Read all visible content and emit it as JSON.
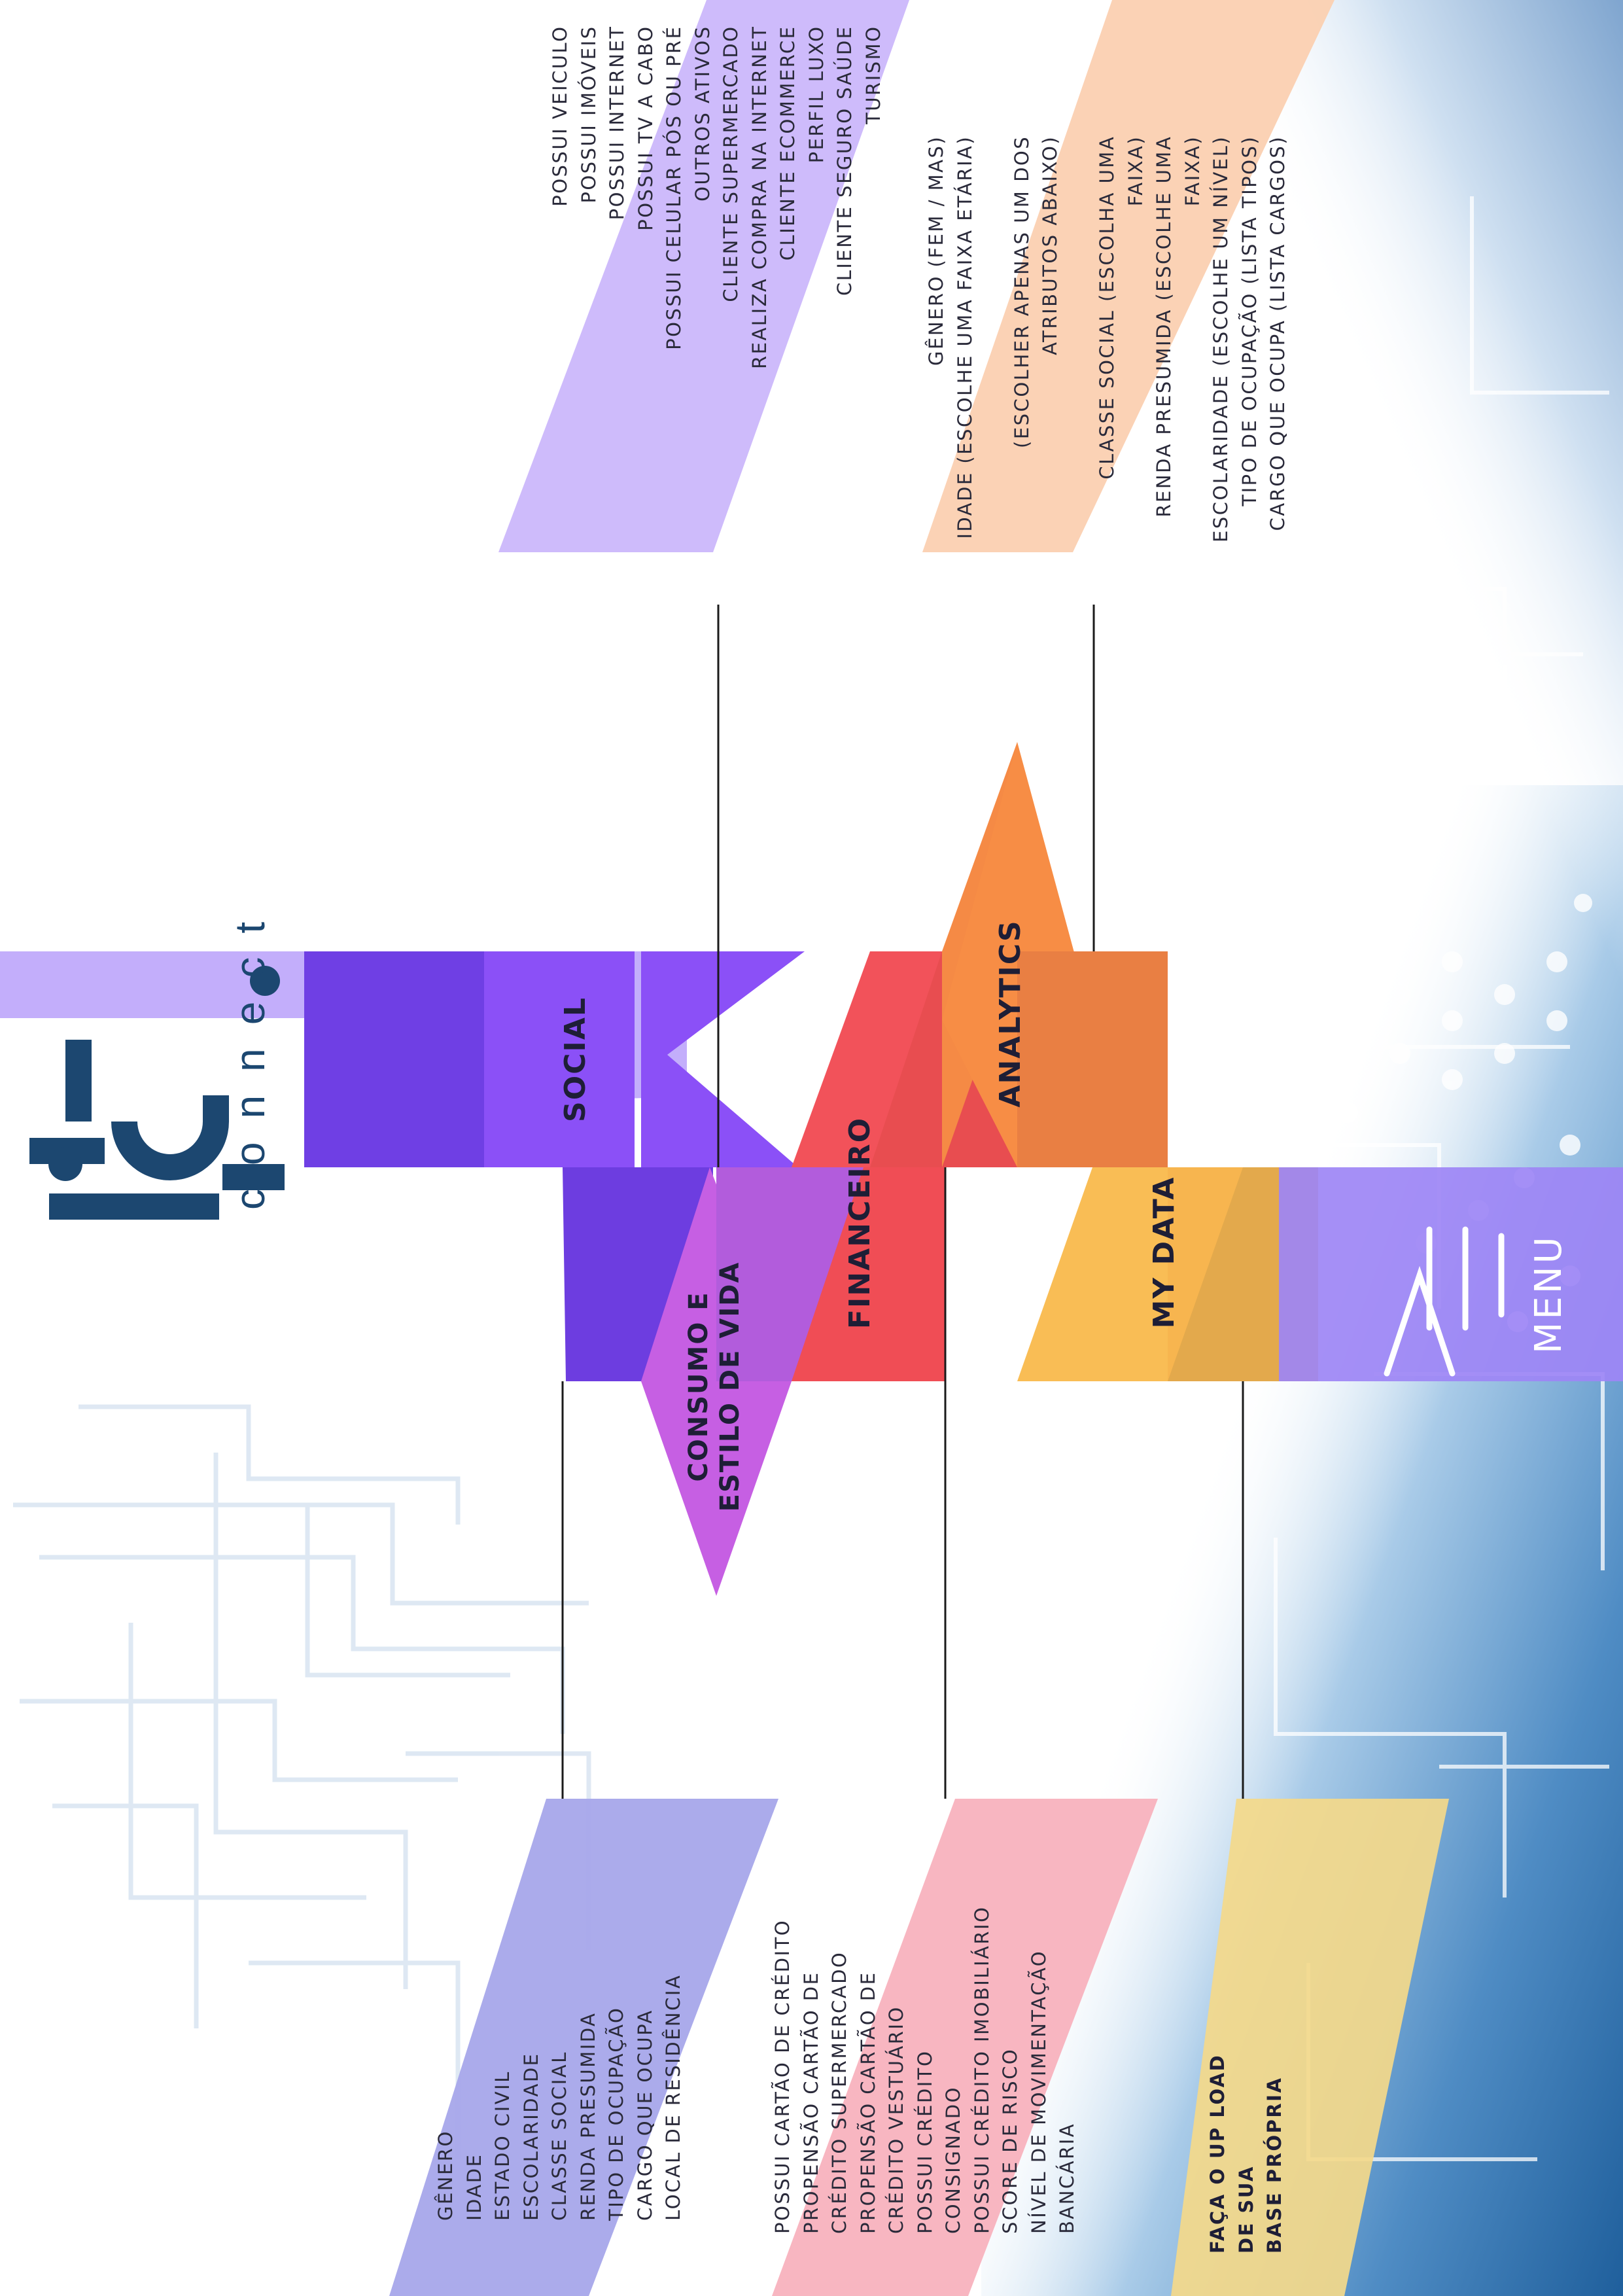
{
  "brand": {
    "logo_text": "tbi",
    "tagline": "connect"
  },
  "segments": {
    "social": "SOCIAL",
    "consumo": [
      "CONSUMO E",
      "ESTILO DE VIDA"
    ],
    "financeiro": "FINANCEIRO",
    "analytics": "ANALYTICS",
    "my_data": "MY DATA"
  },
  "menu": {
    "label": "MENU"
  },
  "panels": {
    "social": [
      "GÊNERO",
      "IDADE",
      "ESTADO CIVIL",
      "ESCOLARIDADE",
      "CLASSE SOCIAL",
      "RENDA PRESUMIDA",
      "TIPO DE OCUPAÇÃO",
      "CARGO QUE OCUPA",
      "LOCAL DE RESIDÊNCIA"
    ],
    "financeiro": [
      "POSSUI CARTÃO DE CRÉDITO",
      "PROPENSÃO CARTÃO DE",
      "CRÉDITO SUPERMERCADO",
      "PROPENSÃO CARTÃO DE",
      "CRÉDITO VESTUÁRIO",
      "POSSUI CRÉDITO",
      "CONSIGNADO",
      "POSSUI CRÉDITO IMOBILIÁRIO",
      "SCORE DE RISCO",
      "NÍVEL DE MOVIMENTAÇÃO",
      "BANCÁRIA"
    ],
    "my_data": [
      "FAÇA O UP LOAD",
      "DE SUA",
      "BASE PRÓPRIA"
    ],
    "consumo": [
      "POSSUI VEICULO",
      "POSSUI IMÓVEIS",
      "POSSUI INTERNET",
      "POSSUI TV A CABO",
      "POSSUI CELULAR PÓS OU PRÉ",
      "OUTROS ATIVOS",
      "CLIENTE SUPERMERCADO",
      "REALIZA COMPRA NA INTERNET",
      "CLIENTE ECOMMERCE",
      "PERFIL LUXO",
      "CLIENTE SEGURO SAÚDE",
      "TURISMO"
    ],
    "analytics": [
      "GÊNERO (FEM / MAS)",
      "IDADE (ESCOLHE UMA FAIXA ETÁRIA)",
      "",
      "(ESCOLHER APENAS UM DOS",
      "ATRIBUTOS ABAIXO)",
      "",
      "CLASSE SOCIAL (ESCOLHA UMA",
      "FAIXA)",
      "RENDA PRESUMIDA (ESCOLHE UMA",
      "FAIXA)",
      "ESCOLARIDADE (ESCOLHE UM NÍVEL)",
      "TIPO DE OCUPAÇÃO (LISTA TIPOS)",
      "CARGO QUE OCUPA (LISTA CARGOS)"
    ]
  },
  "colors": {
    "social": "#7b4ff0",
    "consumo": "#b25cdc",
    "financeiro": "#f04d55",
    "analytics": "#f58a45",
    "my_data": "#f5b54d",
    "menu": "#9d86f5",
    "panel_social": "#a7a7ea",
    "panel_financeiro": "#f7b0bc",
    "panel_my_data": "#f4d98a",
    "panel_consumo": "#cbb7fb",
    "panel_analytics": "#fbd0b1",
    "logo": "#1c4770"
  }
}
